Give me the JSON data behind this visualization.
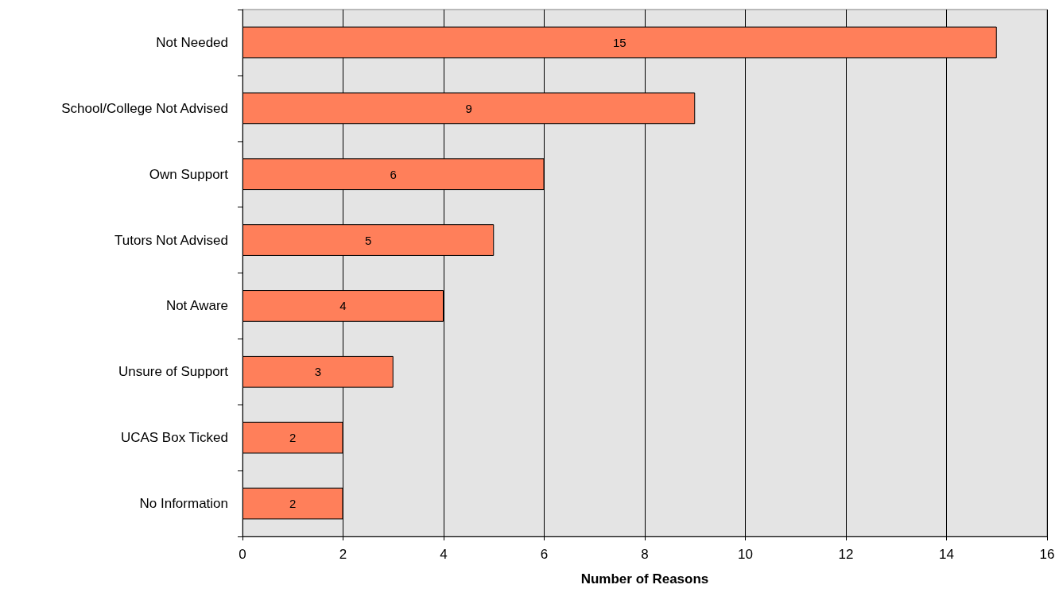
{
  "chart_data": {
    "type": "bar",
    "orientation": "horizontal",
    "xlabel": "Number of Reasons",
    "categories": [
      "Not Needed",
      "School/College Not Advised",
      "Own Support",
      "Tutors Not Advised",
      "Not Aware",
      "Unsure of Support",
      "UCAS Box Ticked",
      "No Information"
    ],
    "values": [
      15,
      9,
      6,
      5,
      4,
      3,
      2,
      2
    ],
    "color": "#ff7f5a",
    "xlim": [
      0,
      16
    ],
    "xticks": [
      0,
      2,
      4,
      6,
      8,
      10,
      12,
      14,
      16
    ],
    "grid": "x",
    "data_labels": true
  }
}
